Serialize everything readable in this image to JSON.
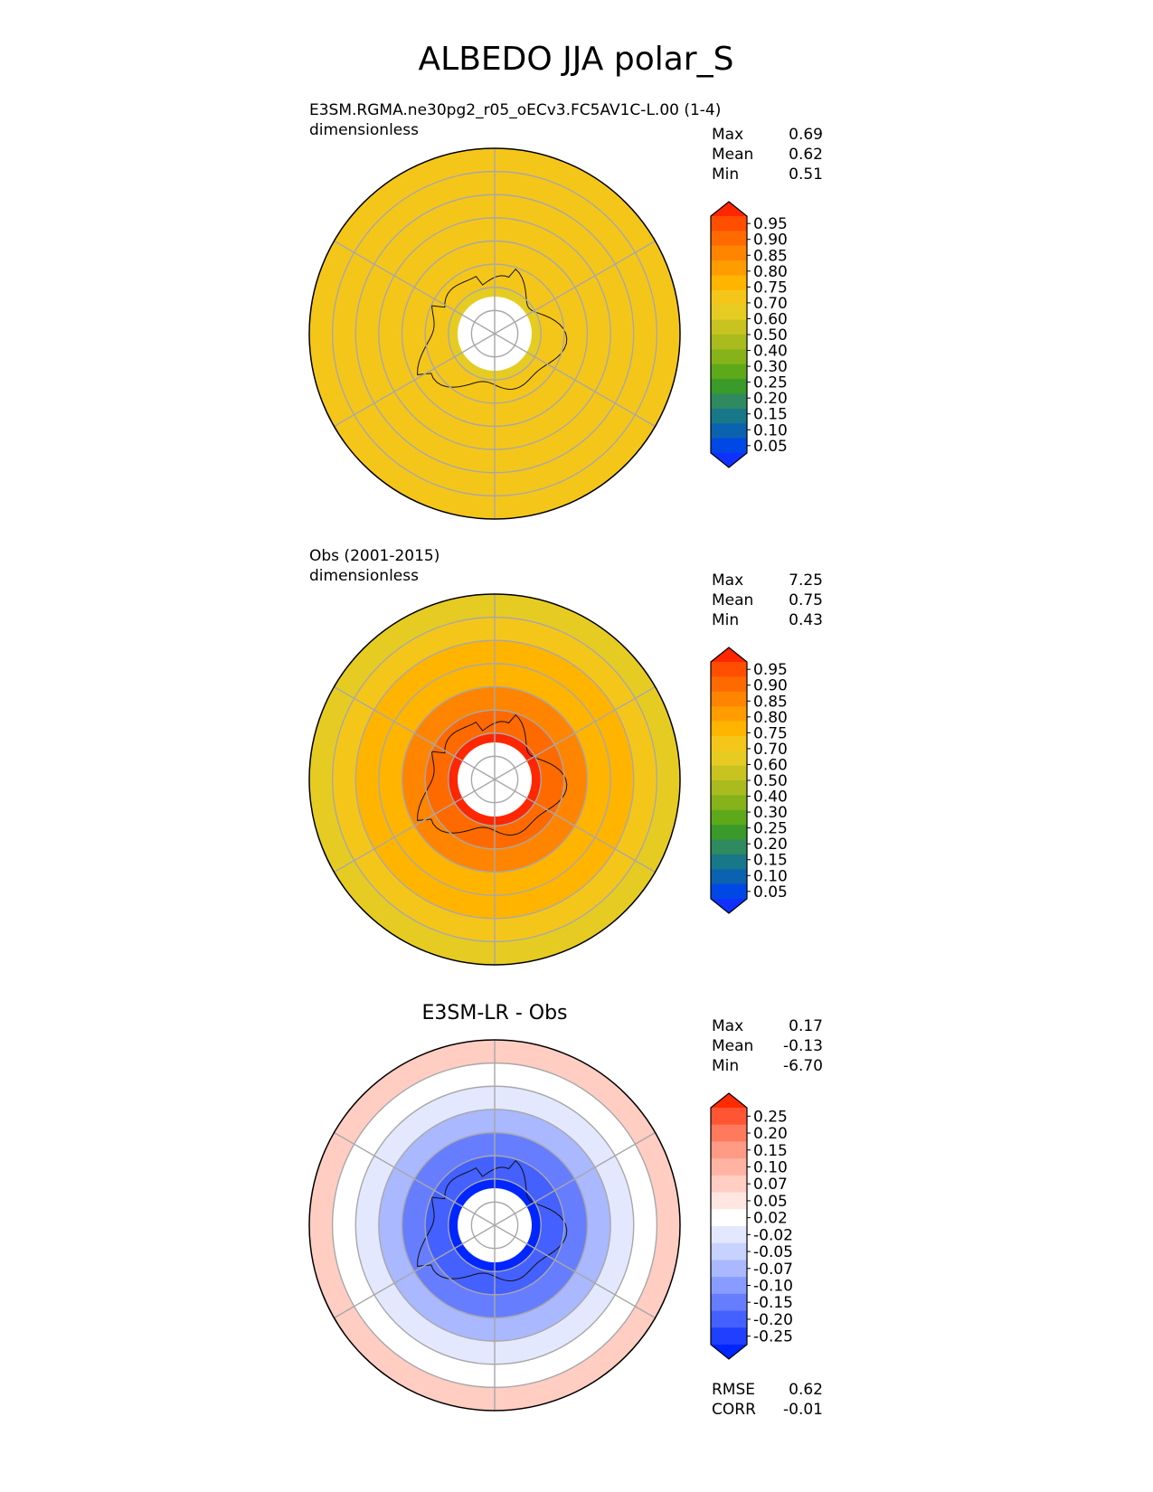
{
  "figure": {
    "title": "ALBEDO JJA polar_S"
  },
  "chart_data": [
    {
      "type": "heatmap",
      "projection": "south-polar-stereographic",
      "title_left_line1": "E3SM.RGMA.ne30pg2_r05_oECv3.FC5AV1C-L.00 (1-4)",
      "title_left_line2": "dimensionless",
      "title_center": "",
      "stats": [
        {
          "label": "Max",
          "value": "0.69"
        },
        {
          "label": "Mean",
          "value": "0.62"
        },
        {
          "label": "Min",
          "value": "0.51"
        }
      ],
      "colorbar_ticks": [
        "0.95",
        "0.90",
        "0.85",
        "0.80",
        "0.75",
        "0.70",
        "0.60",
        "0.50",
        "0.40",
        "0.30",
        "0.25",
        "0.20",
        "0.15",
        "0.10",
        "0.05"
      ],
      "colorbar_colors": [
        "#ff2600",
        "#ff4e00",
        "#ff6a00",
        "#ff8400",
        "#ff9c00",
        "#ffb400",
        "#f5c61a",
        "#e6cc22",
        "#c8c320",
        "#a9bb1e",
        "#86b21a",
        "#5ea91a",
        "#3a9a2a",
        "#2f8a5f",
        "#19778a",
        "#0b62b0",
        "#0048e6",
        "#1030ff"
      ],
      "rings": [
        {
          "lat": -90,
          "value": null
        },
        {
          "lat": -85,
          "value": 0.55
        },
        {
          "lat": -80,
          "value": 0.62
        },
        {
          "lat": -75,
          "value": 0.64
        },
        {
          "lat": -70,
          "value": 0.65
        },
        {
          "lat": -65,
          "value": 0.64
        },
        {
          "lat": -60,
          "value": 0.62
        },
        {
          "lat": -55,
          "value": 0.6
        },
        {
          "lat": -50,
          "value": 0.58
        }
      ],
      "bottom_stats": []
    },
    {
      "type": "heatmap",
      "projection": "south-polar-stereographic",
      "title_left_line1": "Obs (2001-2015)",
      "title_left_line2": "dimensionless",
      "title_center": "",
      "stats": [
        {
          "label": "Max",
          "value": "7.25"
        },
        {
          "label": "Mean",
          "value": "0.75"
        },
        {
          "label": "Min",
          "value": "0.43"
        }
      ],
      "colorbar_ticks": [
        "0.95",
        "0.90",
        "0.85",
        "0.80",
        "0.75",
        "0.70",
        "0.60",
        "0.50",
        "0.40",
        "0.30",
        "0.25",
        "0.20",
        "0.15",
        "0.10",
        "0.05"
      ],
      "colorbar_colors": [
        "#ff2600",
        "#ff4e00",
        "#ff6a00",
        "#ff8400",
        "#ff9c00",
        "#ffb400",
        "#f5c61a",
        "#e6cc22",
        "#c8c320",
        "#a9bb1e",
        "#86b21a",
        "#5ea91a",
        "#3a9a2a",
        "#2f8a5f",
        "#19778a",
        "#0b62b0",
        "#0048e6",
        "#1030ff"
      ],
      "rings": [
        {
          "lat": -90,
          "value": null
        },
        {
          "lat": -84,
          "value": 0.95
        },
        {
          "lat": -80,
          "value": 0.88
        },
        {
          "lat": -75,
          "value": 0.8
        },
        {
          "lat": -70,
          "value": 0.74
        },
        {
          "lat": -65,
          "value": 0.7
        },
        {
          "lat": -60,
          "value": 0.62
        },
        {
          "lat": -55,
          "value": 0.56
        },
        {
          "lat": -50,
          "value": 0.52
        }
      ],
      "bottom_stats": []
    },
    {
      "type": "heatmap",
      "projection": "south-polar-stereographic",
      "title_left_line1": "",
      "title_left_line2": "",
      "title_center": "E3SM-LR - Obs",
      "stats": [
        {
          "label": "Max",
          "value": "0.17"
        },
        {
          "label": "Mean",
          "value": "-0.13"
        },
        {
          "label": "Min",
          "value": "-6.70"
        }
      ],
      "colorbar_ticks": [
        "0.25",
        "0.20",
        "0.15",
        "0.10",
        "0.07",
        "0.05",
        "0.02",
        "-0.02",
        "-0.05",
        "-0.07",
        "-0.10",
        "-0.15",
        "-0.20",
        "-0.25"
      ],
      "colorbar_colors": [
        "#ff2a00",
        "#ff5533",
        "#ff7a5c",
        "#ff9a85",
        "#ffb3a3",
        "#ffcdc2",
        "#ffe6e0",
        "#ffffff",
        "#e3e8ff",
        "#c7d2ff",
        "#a9b8ff",
        "#889bff",
        "#677dff",
        "#4460ff",
        "#1f40ff",
        "#0026ff"
      ],
      "rings": [
        {
          "lat": -90,
          "value": null
        },
        {
          "lat": -84,
          "value": -0.3
        },
        {
          "lat": -80,
          "value": -0.22
        },
        {
          "lat": -75,
          "value": -0.16
        },
        {
          "lat": -70,
          "value": -0.1
        },
        {
          "lat": -65,
          "value": -0.05
        },
        {
          "lat": -60,
          "value": 0.0
        },
        {
          "lat": -55,
          "value": 0.06
        },
        {
          "lat": -50,
          "value": 0.1
        }
      ],
      "bottom_stats": [
        {
          "label": "RMSE",
          "value": "0.62"
        },
        {
          "label": "CORR",
          "value": "-0.01"
        }
      ]
    }
  ]
}
